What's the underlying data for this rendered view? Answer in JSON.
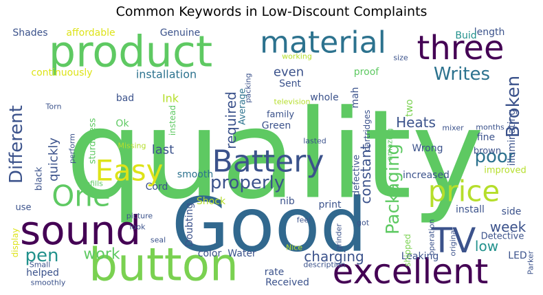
{
  "chart_data": {
    "type": "wordcloud",
    "title": "Common Keywords in Low-Discount Complaints",
    "colors": {
      "dark_purple": "#440154",
      "indigo": "#3b528b",
      "steel_blue": "#2c728e",
      "teal": "#21918c",
      "green": "#5ec962",
      "light_green": "#7ad151",
      "lime": "#b5de2b",
      "yellow": "#dde318"
    },
    "words": [
      {
        "text": "quality",
        "color": "#5ec962"
      },
      {
        "text": "Good",
        "color": "#31688e"
      },
      {
        "text": "product",
        "color": "#5ec962"
      },
      {
        "text": "button",
        "color": "#7ad151"
      },
      {
        "text": "sound",
        "color": "#440154"
      },
      {
        "text": "material",
        "color": "#2c728e"
      },
      {
        "text": "Battery",
        "color": "#3b528b"
      },
      {
        "text": "excellent",
        "color": "#440154"
      },
      {
        "text": "three",
        "color": "#440154"
      },
      {
        "text": "price",
        "color": "#b5de2b"
      },
      {
        "text": "Easy",
        "color": "#dde318"
      },
      {
        "text": "TV",
        "color": "#3b528b"
      },
      {
        "text": "One",
        "color": "#5ec962"
      },
      {
        "text": "Different",
        "color": "#3b528b"
      },
      {
        "text": "properly",
        "color": "#3b528b"
      },
      {
        "text": "Packaging",
        "color": "#5ec962"
      },
      {
        "text": "Broken",
        "color": "#3b528b"
      },
      {
        "text": "Writes",
        "color": "#2c728e"
      },
      {
        "text": "poor",
        "color": "#2c728e"
      },
      {
        "text": "pen",
        "color": "#21918c"
      },
      {
        "text": "charging",
        "color": "#3b528b"
      },
      {
        "text": "week",
        "color": "#3b528b"
      },
      {
        "text": "constant",
        "color": "#3b528b"
      },
      {
        "text": "Heats",
        "color": "#3b528b"
      },
      {
        "text": "work",
        "color": "#5ec962"
      },
      {
        "text": "quickly",
        "color": "#3b528b"
      },
      {
        "text": "low",
        "color": "#21918c"
      },
      {
        "text": "even",
        "color": "#3b528b"
      },
      {
        "text": "last",
        "color": "#3b528b"
      },
      {
        "text": "required",
        "color": "#3b528b"
      },
      {
        "text": "installation",
        "color": "#2c728e"
      },
      {
        "text": "continuously",
        "color": "#dde318"
      },
      {
        "text": "affordable",
        "color": "#dde318"
      },
      {
        "text": "Genuine",
        "color": "#3b528b"
      },
      {
        "text": "Shades",
        "color": "#3b528b"
      },
      {
        "text": "length",
        "color": "#3b528b"
      },
      {
        "text": "Buid",
        "color": "#21918c"
      },
      {
        "text": "Ink",
        "color": "#b5de2b"
      },
      {
        "text": "bad",
        "color": "#3b528b"
      },
      {
        "text": "Sent",
        "color": "#3b528b"
      },
      {
        "text": "whole",
        "color": "#3b528b"
      },
      {
        "text": "mah",
        "color": "#3b528b"
      },
      {
        "text": "proof",
        "color": "#5ec962"
      },
      {
        "text": "cartridges",
        "color": "#3b528b"
      },
      {
        "text": "two",
        "color": "#7ad151"
      },
      {
        "text": "LED",
        "color": "#3b528b"
      },
      {
        "text": "family",
        "color": "#3b528b"
      },
      {
        "text": "Green",
        "color": "#3b528b"
      },
      {
        "text": "Average",
        "color": "#2c728e"
      },
      {
        "text": "instead",
        "color": "#5ec962"
      },
      {
        "text": "Ok",
        "color": "#5ec962"
      },
      {
        "text": "sturdiness",
        "color": "#5ec962"
      },
      {
        "text": "black",
        "color": "#3b528b"
      },
      {
        "text": "fine",
        "color": "#3b528b"
      },
      {
        "text": "illuminating",
        "color": "#3b528b"
      },
      {
        "text": "brown",
        "color": "#3b528b"
      },
      {
        "text": "Wrong",
        "color": "#3b528b"
      },
      {
        "text": "defective",
        "color": "#3b528b"
      },
      {
        "text": "improved",
        "color": "#b5de2b"
      },
      {
        "text": "increased",
        "color": "#3b528b"
      },
      {
        "text": "smooth",
        "color": "#2c728e"
      },
      {
        "text": "Cord",
        "color": "#3b528b"
      },
      {
        "text": "Shock",
        "color": "#b5de2b"
      },
      {
        "text": "nib",
        "color": "#3b528b"
      },
      {
        "text": "print",
        "color": "#3b528b"
      },
      {
        "text": "install",
        "color": "#3b528b"
      },
      {
        "text": "side",
        "color": "#3b528b"
      },
      {
        "text": "Doubting",
        "color": "#3b528b"
      },
      {
        "text": "Detective",
        "color": "#3b528b"
      },
      {
        "text": "color",
        "color": "#3b528b"
      },
      {
        "text": "Water",
        "color": "#3b528b"
      },
      {
        "text": "Leaking",
        "color": "#3b528b"
      },
      {
        "text": "shipped",
        "color": "#7ad151"
      },
      {
        "text": "rate",
        "color": "#3b528b"
      },
      {
        "text": "Received",
        "color": "#3b528b"
      },
      {
        "text": "helped",
        "color": "#3b528b"
      },
      {
        "text": "use",
        "color": "#3b528b"
      },
      {
        "text": "display",
        "color": "#dde318"
      },
      {
        "text": "Small",
        "color": "#3b528b"
      },
      {
        "text": "smoothly",
        "color": "#3b528b"
      },
      {
        "text": "description",
        "color": "#3b528b"
      },
      {
        "text": "operation",
        "color": "#3b528b"
      },
      {
        "text": "original",
        "color": "#3b528b"
      },
      {
        "text": "Parker",
        "color": "#3b528b"
      },
      {
        "text": "grinder",
        "color": "#3b528b"
      },
      {
        "text": "Nice",
        "color": "#b5de2b"
      },
      {
        "text": "seal",
        "color": "#3b528b"
      },
      {
        "text": "feel",
        "color": "#3b528b"
      },
      {
        "text": "got",
        "color": "#3b528b"
      },
      {
        "text": "look",
        "color": "#3b528b"
      },
      {
        "text": "picture",
        "color": "#3b528b"
      },
      {
        "text": "refills",
        "color": "#5ec962"
      },
      {
        "text": "perform",
        "color": "#3b528b"
      },
      {
        "text": "Missing",
        "color": "#b5de2b"
      },
      {
        "text": "lasted",
        "color": "#3b528b"
      },
      {
        "text": "mixer",
        "color": "#3b528b"
      },
      {
        "text": "months",
        "color": "#3b528b"
      },
      {
        "text": "amazing",
        "color": "#5ec962"
      },
      {
        "text": "television",
        "color": "#b5de2b"
      },
      {
        "text": "Torn",
        "color": "#3b528b"
      },
      {
        "text": "packing",
        "color": "#3b528b"
      },
      {
        "text": "working",
        "color": "#b5de2b"
      },
      {
        "text": "size",
        "color": "#3b528b"
      }
    ]
  }
}
